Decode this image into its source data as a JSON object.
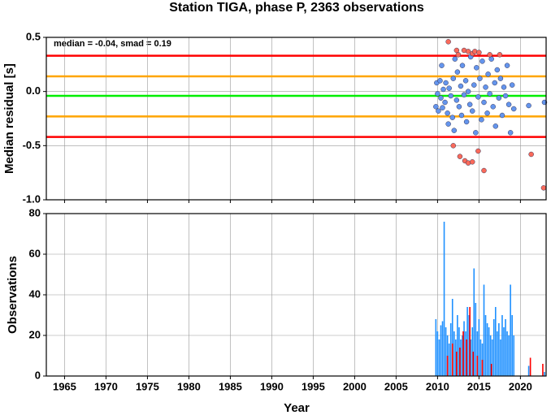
{
  "chart_data": [
    {
      "type": "scatter",
      "title": "Station TIGA, phase P, 2363 observations",
      "ylabel": "Median residual [s]",
      "annotation": "median = -0.04, smad = 0.19",
      "xlim": [
        1962.8,
        2023.1
      ],
      "ylim": [
        -1.0,
        0.5
      ],
      "yticks": [
        {
          "value": 0.5,
          "label": "0.5"
        },
        {
          "value": 0,
          "label": "0.0"
        },
        {
          "value": -0.5,
          "label": "-0.5"
        },
        {
          "value": -1.0,
          "label": "-1.0"
        }
      ],
      "hlines": [
        {
          "value": 0.33,
          "color": "#ff0000"
        },
        {
          "value": 0.14,
          "color": "#ffa500"
        },
        {
          "value": -0.04,
          "color": "#00ee00"
        },
        {
          "value": -0.23,
          "color": "#ffa500"
        },
        {
          "value": -0.42,
          "color": "#ff0000"
        }
      ],
      "series": [
        {
          "color": "#6495ed",
          "x": [
            2009.8,
            2009.9,
            2010.0,
            2010.1,
            2010.3,
            2010.4,
            2010.5,
            2010.6,
            2010.7,
            2010.9,
            2011.0,
            2011.2,
            2011.3,
            2011.4,
            2011.6,
            2011.8,
            2011.9,
            2012.0,
            2012.1,
            2012.3,
            2012.4,
            2012.6,
            2012.8,
            2012.9,
            2013.0,
            2013.2,
            2013.4,
            2013.5,
            2013.7,
            2013.9,
            2014.0,
            2014.2,
            2014.4,
            2014.6,
            2014.7,
            2014.9,
            2015.1,
            2015.3,
            2015.4,
            2015.6,
            2015.8,
            2016.0,
            2016.1,
            2016.3,
            2016.5,
            2016.7,
            2016.9,
            2017.0,
            2017.2,
            2017.4,
            2017.6,
            2017.8,
            2018.0,
            2018.2,
            2018.4,
            2018.6,
            2018.8,
            2019.0,
            2019.2,
            2021.0,
            2022.9
          ],
          "values": [
            -0.14,
            0.08,
            -0.02,
            -0.18,
            0.1,
            -0.06,
            0.24,
            -0.15,
            0.02,
            -0.1,
            0.08,
            -0.2,
            -0.3,
            0.03,
            -0.04,
            -0.24,
            0.12,
            -0.36,
            0.3,
            -0.08,
            0.18,
            -0.14,
            0.05,
            -0.22,
            0.24,
            -0.03,
            0.1,
            -0.28,
            0.0,
            -0.12,
            0.32,
            -0.18,
            0.06,
            -0.38,
            0.22,
            -0.05,
            0.12,
            -0.26,
            0.28,
            -0.1,
            0.04,
            -0.2,
            0.16,
            -0.02,
            0.3,
            -0.14,
            0.08,
            -0.32,
            0.2,
            -0.06,
            0.12,
            -0.22,
            0.04,
            -0.04,
            0.24,
            -0.12,
            -0.38,
            0.06,
            -0.16,
            -0.13,
            -0.1
          ]
        },
        {
          "color": "#fa6a5a",
          "x": [
            2011.3,
            2012.3,
            2012.5,
            2013.2,
            2013.7,
            2014.2,
            2014.5,
            2015.0,
            2016.3,
            2017.5,
            2011.9,
            2012.7,
            2013.3,
            2013.7,
            2014.2,
            2014.9,
            2015.6,
            2021.3,
            2022.8
          ],
          "values": [
            0.46,
            0.38,
            0.34,
            0.38,
            0.37,
            0.35,
            0.37,
            0.36,
            0.34,
            0.34,
            -0.5,
            -0.6,
            -0.64,
            -0.66,
            -0.65,
            -0.55,
            -0.73,
            -0.58,
            -0.89
          ]
        }
      ]
    },
    {
      "type": "bar",
      "ylabel": "Observations",
      "xlabel": "Year",
      "xlim": [
        1962.8,
        2023.1
      ],
      "ylim": [
        0,
        80
      ],
      "xticks": [
        1965,
        1970,
        1975,
        1980,
        1985,
        1990,
        1995,
        2000,
        2005,
        2010,
        2015,
        2020
      ],
      "yticks": [
        0,
        20,
        40,
        60,
        80
      ],
      "series": [
        {
          "color": "#1e90ff",
          "x": [
            2009.8,
            2010.0,
            2010.2,
            2010.4,
            2010.6,
            2010.8,
            2011.0,
            2011.2,
            2011.4,
            2011.6,
            2011.8,
            2012.0,
            2012.2,
            2012.4,
            2012.6,
            2012.8,
            2013.0,
            2013.2,
            2013.4,
            2013.6,
            2013.8,
            2014.0,
            2014.2,
            2014.4,
            2014.6,
            2014.8,
            2015.0,
            2015.2,
            2015.4,
            2015.6,
            2015.8,
            2016.0,
            2016.2,
            2016.4,
            2016.6,
            2016.8,
            2017.0,
            2017.2,
            2017.4,
            2017.6,
            2017.8,
            2018.0,
            2018.2,
            2018.4,
            2018.6,
            2018.8,
            2019.0,
            2019.2,
            2021.0,
            2022.9
          ],
          "values": [
            28,
            22,
            18,
            25,
            27,
            76,
            24,
            20,
            16,
            26,
            38,
            22,
            18,
            30,
            24,
            18,
            20,
            27,
            22,
            34,
            30,
            18,
            24,
            53,
            36,
            22,
            28,
            18,
            16,
            45,
            30,
            26,
            24,
            20,
            18,
            28,
            34,
            22,
            26,
            18,
            30,
            24,
            28,
            22,
            20,
            45,
            30,
            20,
            5,
            2
          ]
        },
        {
          "color": "#ff0000",
          "x": [
            2011.2,
            2011.8,
            2012.3,
            2012.7,
            2013.1,
            2013.5,
            2013.9,
            2014.3,
            2014.8,
            2015.4,
            2016.5,
            2021.2,
            2022.7
          ],
          "values": [
            10,
            16,
            12,
            14,
            22,
            18,
            34,
            12,
            10,
            8,
            6,
            9,
            6
          ]
        }
      ]
    }
  ]
}
